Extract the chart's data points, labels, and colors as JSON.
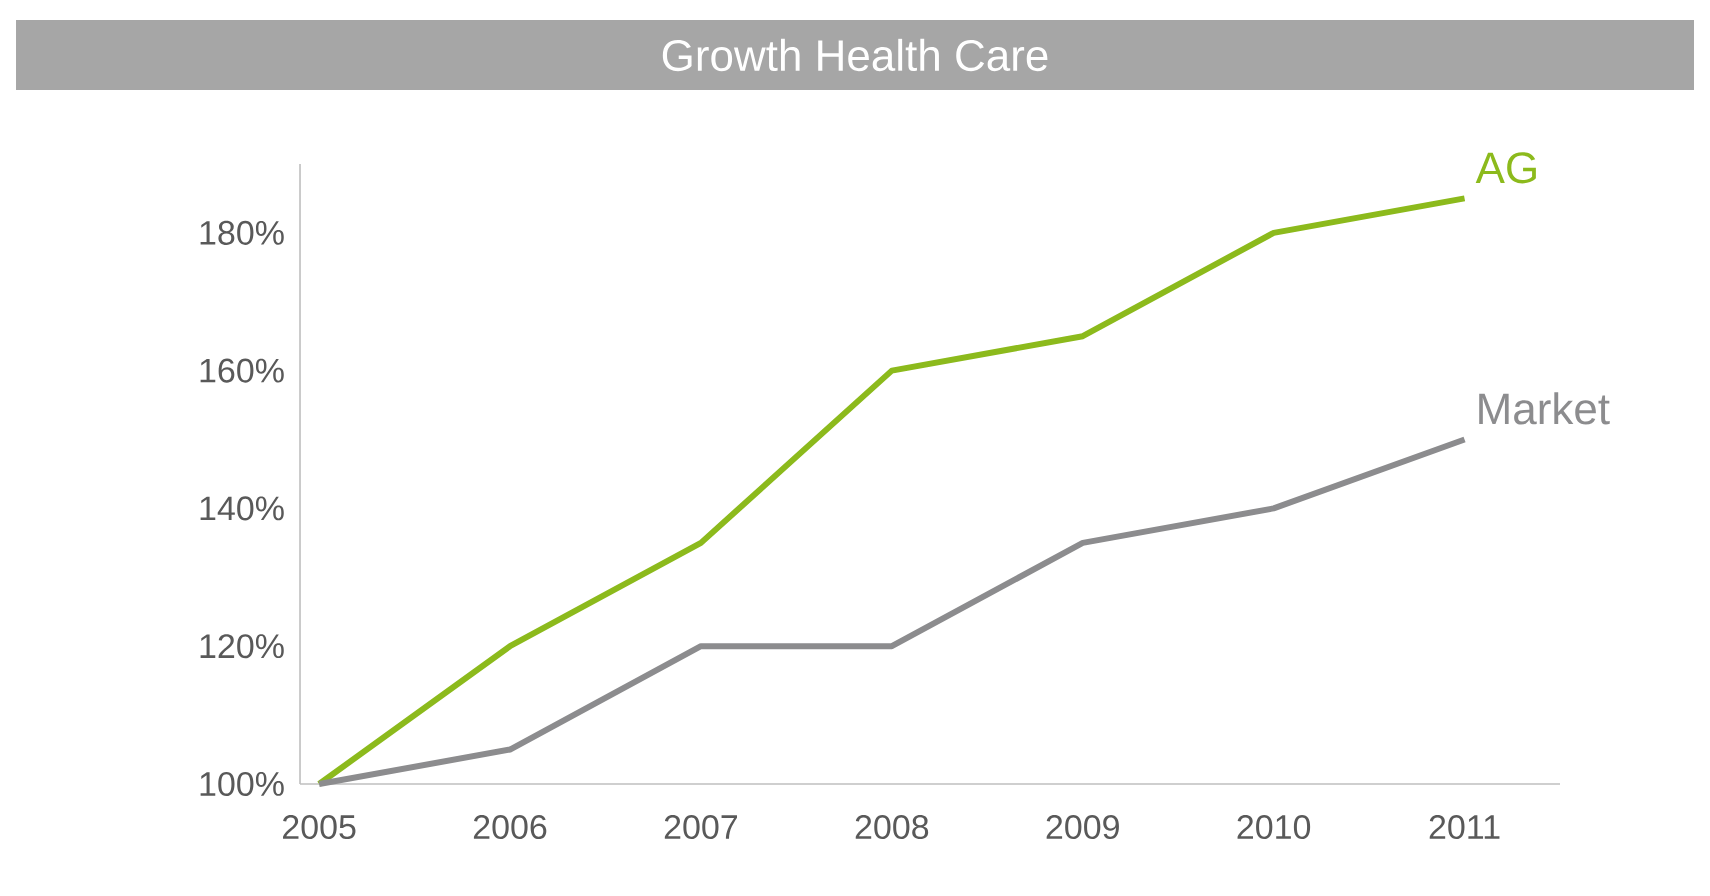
{
  "chart_data": {
    "type": "line",
    "title": "Growth Health Care",
    "categories": [
      "2005",
      "2006",
      "2007",
      "2008",
      "2009",
      "2010",
      "2011"
    ],
    "series": [
      {
        "name": "AG",
        "color": "#8cba1c",
        "values": [
          100,
          120,
          135,
          160,
          165,
          180,
          185
        ]
      },
      {
        "name": "Market",
        "color": "#8c8c8e",
        "values": [
          100,
          105,
          120,
          120,
          135,
          140,
          150
        ]
      }
    ],
    "ylim": [
      100,
      190
    ],
    "yticks": [
      {
        "value": 100,
        "label": "100%"
      },
      {
        "value": 120,
        "label": "120%"
      },
      {
        "value": 140,
        "label": "140%"
      },
      {
        "value": 160,
        "label": "160%"
      },
      {
        "value": 180,
        "label": "180%"
      }
    ],
    "grid": false,
    "legend": false,
    "marker": "none",
    "line_style": "solid"
  }
}
